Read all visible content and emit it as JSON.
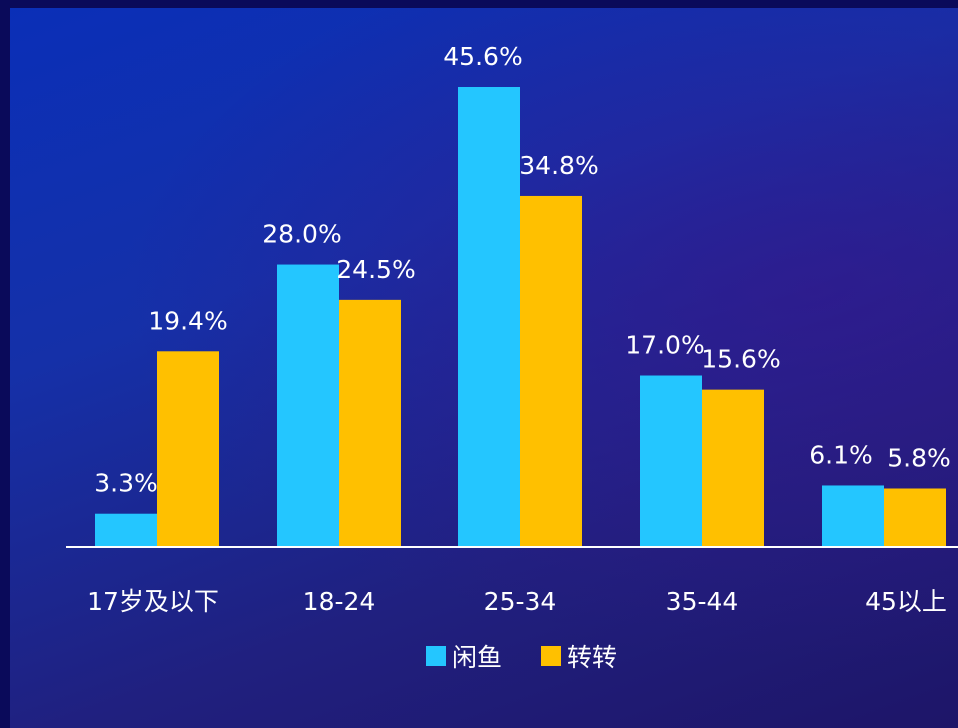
{
  "chart_data": {
    "type": "bar",
    "categories": [
      "17岁及以下",
      "18-24",
      "25-34",
      "35-44",
      "45以上"
    ],
    "series": [
      {
        "name": "闲鱼",
        "color": "#24c6ff",
        "values": [
          3.3,
          28.0,
          45.6,
          17.0,
          6.1
        ],
        "labels": [
          "3.3%",
          "28.0%",
          "45.6%",
          "17.0%",
          "6.1%"
        ]
      },
      {
        "name": "转转",
        "color": "#ffc000",
        "values": [
          19.4,
          24.5,
          34.8,
          15.6,
          5.8
        ],
        "labels": [
          "19.4%",
          "24.5%",
          "34.8%",
          "15.6%",
          "5.8%"
        ]
      }
    ],
    "title": "",
    "xlabel": "",
    "ylabel": "",
    "ylim": [
      0,
      45.6
    ],
    "grid": false,
    "legend": "bottom-center",
    "axis_color": "#ffffff"
  }
}
